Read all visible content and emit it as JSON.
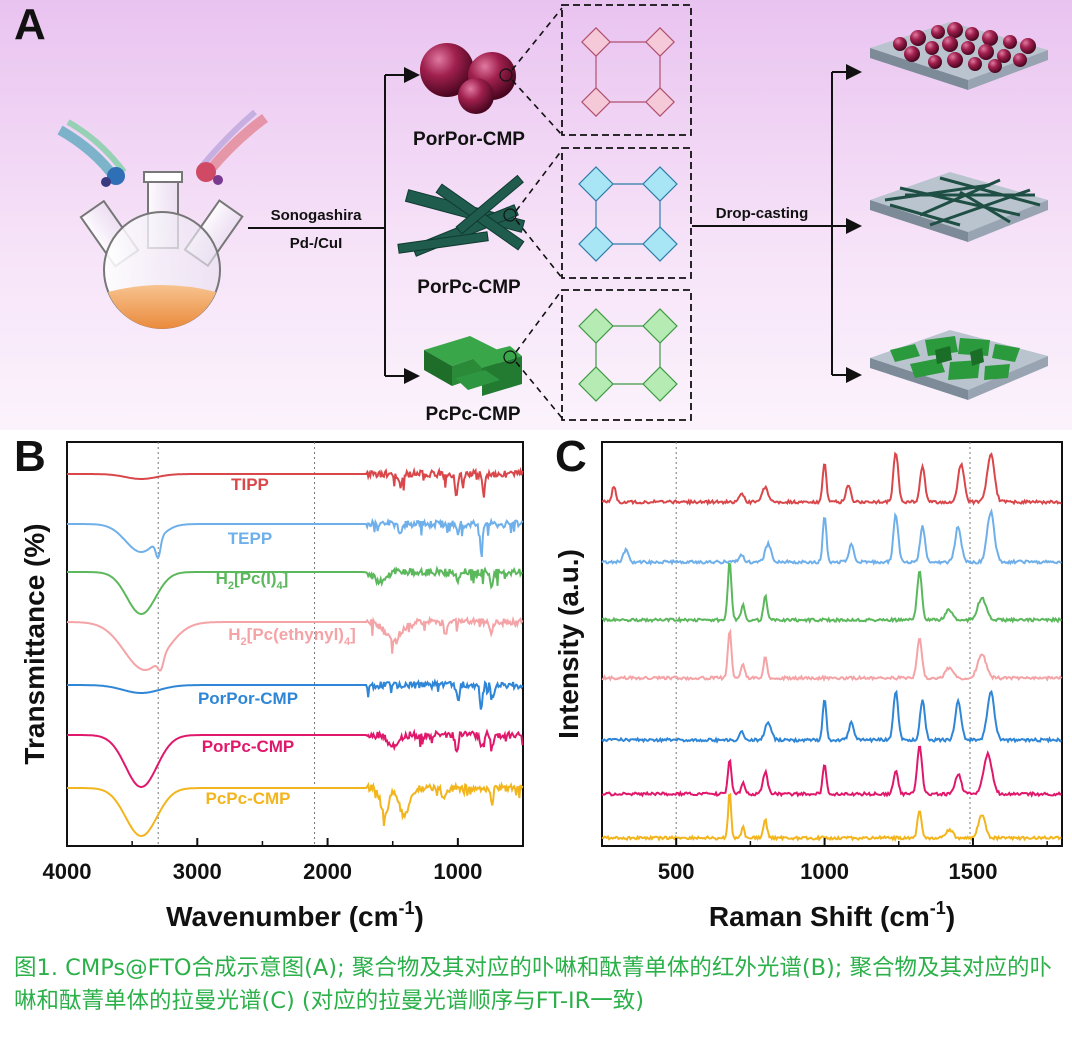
{
  "panel_a": {
    "label": "A",
    "products": [
      "PorPor-CMP",
      "PorPc-CMP",
      "PcPc-CMP"
    ],
    "reaction": {
      "name": "Sonogashira",
      "catalyst": "Pd-/CuI"
    },
    "process": "Drop-casting"
  },
  "panel_b": {
    "label": "B",
    "spectra": [
      "TIPP",
      "TEPP",
      "H2[Pc(I)4]",
      "H2[Pc(ethynyl)4]",
      "PorPor-CMP",
      "PorPc-CMP",
      "PcPc-CMP"
    ],
    "colors": [
      "#d9474a",
      "#6fb0ea",
      "#5cb85c",
      "#f4a3a6",
      "#2f86d6",
      "#e0186c",
      "#f2b51e"
    ]
  },
  "panel_c": {
    "label": "C"
  },
  "chart_data": [
    {
      "type": "line",
      "title": "",
      "xlabel": "Wavenumber (cm-1)",
      "ylabel": "Transmittance (%)",
      "xlim": [
        4000,
        500
      ],
      "xticks": [
        "4000",
        "3000",
        "2000",
        "1000"
      ],
      "reference_lines": [
        3300,
        2100
      ],
      "series": [
        {
          "name": "TIPP",
          "color": "#d9474a"
        },
        {
          "name": "TEPP",
          "color": "#6fb0ea"
        },
        {
          "name": "H2[Pc(I)4]",
          "color": "#5cb85c"
        },
        {
          "name": "H2[Pc(ethynyl)4]",
          "color": "#f4a3a6"
        },
        {
          "name": "PorPor-CMP",
          "color": "#2f86d6"
        },
        {
          "name": "PorPc-CMP",
          "color": "#e0186c"
        },
        {
          "name": "PcPc-CMP",
          "color": "#f2b51e"
        }
      ]
    },
    {
      "type": "line",
      "title": "",
      "xlabel": "Raman Shift (cm-1)",
      "ylabel": "Intensity (a.u.)",
      "xlim": [
        250,
        1800
      ],
      "xticks": [
        "500",
        "1000",
        "1500"
      ],
      "reference_lines": [
        500,
        1490
      ],
      "series": [
        {
          "name": "TIPP",
          "color": "#d9474a"
        },
        {
          "name": "TEPP",
          "color": "#6fb0ea"
        },
        {
          "name": "H2[Pc(I)4]",
          "color": "#5cb85c"
        },
        {
          "name": "H2[Pc(ethynyl)4]",
          "color": "#f4a3a6"
        },
        {
          "name": "PorPor-CMP",
          "color": "#2f86d6"
        },
        {
          "name": "PorPc-CMP",
          "color": "#e0186c"
        },
        {
          "name": "PcPc-CMP",
          "color": "#f2b51e"
        }
      ]
    }
  ],
  "caption": "图1. CMPs@FTO合成示意图(A); 聚合物及其对应的卟啉和酞菁单体的红外光谱(B); 聚合物及其对应的卟啉和酞菁单体的拉曼光谱(C) (对应的拉曼光谱顺序与FT-IR一致)"
}
